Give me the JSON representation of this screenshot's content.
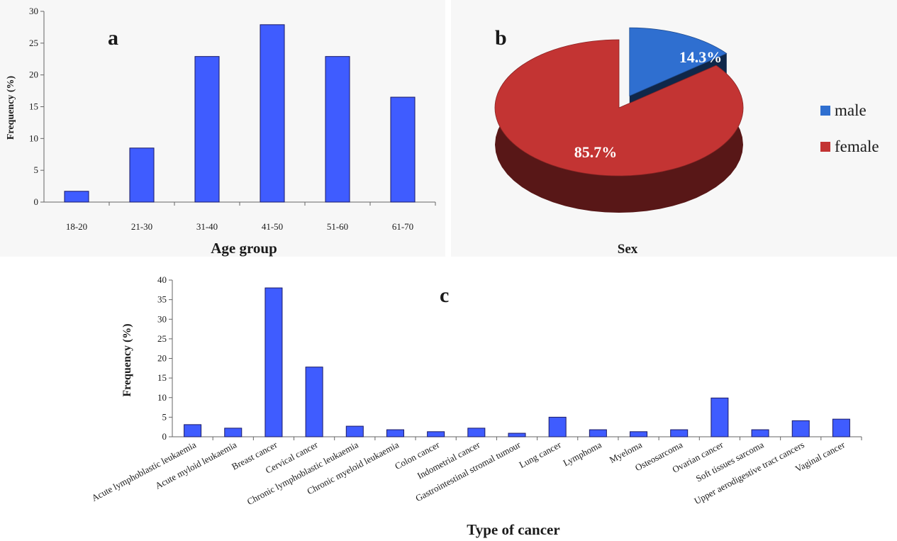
{
  "chart_data": [
    {
      "panel": "a",
      "type": "bar",
      "xlabel": "Age group",
      "ylabel": "Frequency (%)",
      "categories": [
        "18-20",
        "21-30",
        "31-40",
        "41-50",
        "51-60",
        "61-70"
      ],
      "values": [
        1.7,
        8.5,
        22.9,
        27.9,
        22.9,
        16.5
      ],
      "ylim": [
        0,
        30
      ],
      "yticks": [
        0,
        5,
        10,
        15,
        20,
        25,
        30
      ],
      "bar_color": "#3f5cff",
      "grid": false
    },
    {
      "panel": "b",
      "type": "pie",
      "xlabel": "Sex",
      "labels": [
        "male",
        "female"
      ],
      "values": [
        14.3,
        85.7
      ],
      "value_labels": [
        "14.3%",
        "85.7%"
      ],
      "colors": [
        "#2f6fd0",
        "#c33433"
      ],
      "legend_position": "right",
      "exploded": "male"
    },
    {
      "panel": "c",
      "type": "bar",
      "xlabel": "Type of cancer",
      "ylabel": "Frequency (%)",
      "categories": [
        "Acute lymphoblastic leukaemia",
        "Acute myloid leukaemia",
        "Breast cancer",
        "Cervical cancer",
        "Chronic lymphoblastic leukaemia",
        "Chronic myeloid leukaemia",
        "Colon cancer",
        "Indometrial cancer",
        "Gastrointestinal stromal tumour",
        "Lung cancer",
        "Lymphoma",
        "Myeloma",
        "Osteosarcoma",
        "Ovarian cancer",
        "Soft tissues sarcoma",
        "Upper aerodigestive tract cancers",
        "Vaginal cancer"
      ],
      "values": [
        3.1,
        2.2,
        38.0,
        17.8,
        2.7,
        1.8,
        1.3,
        2.2,
        0.9,
        5.0,
        1.8,
        1.3,
        1.8,
        9.9,
        1.8,
        4.1,
        4.5
      ],
      "ylim": [
        0,
        40
      ],
      "yticks": [
        0,
        5,
        10,
        15,
        20,
        25,
        30,
        35,
        40
      ],
      "bar_color": "#3f5cff",
      "grid": false
    }
  ]
}
